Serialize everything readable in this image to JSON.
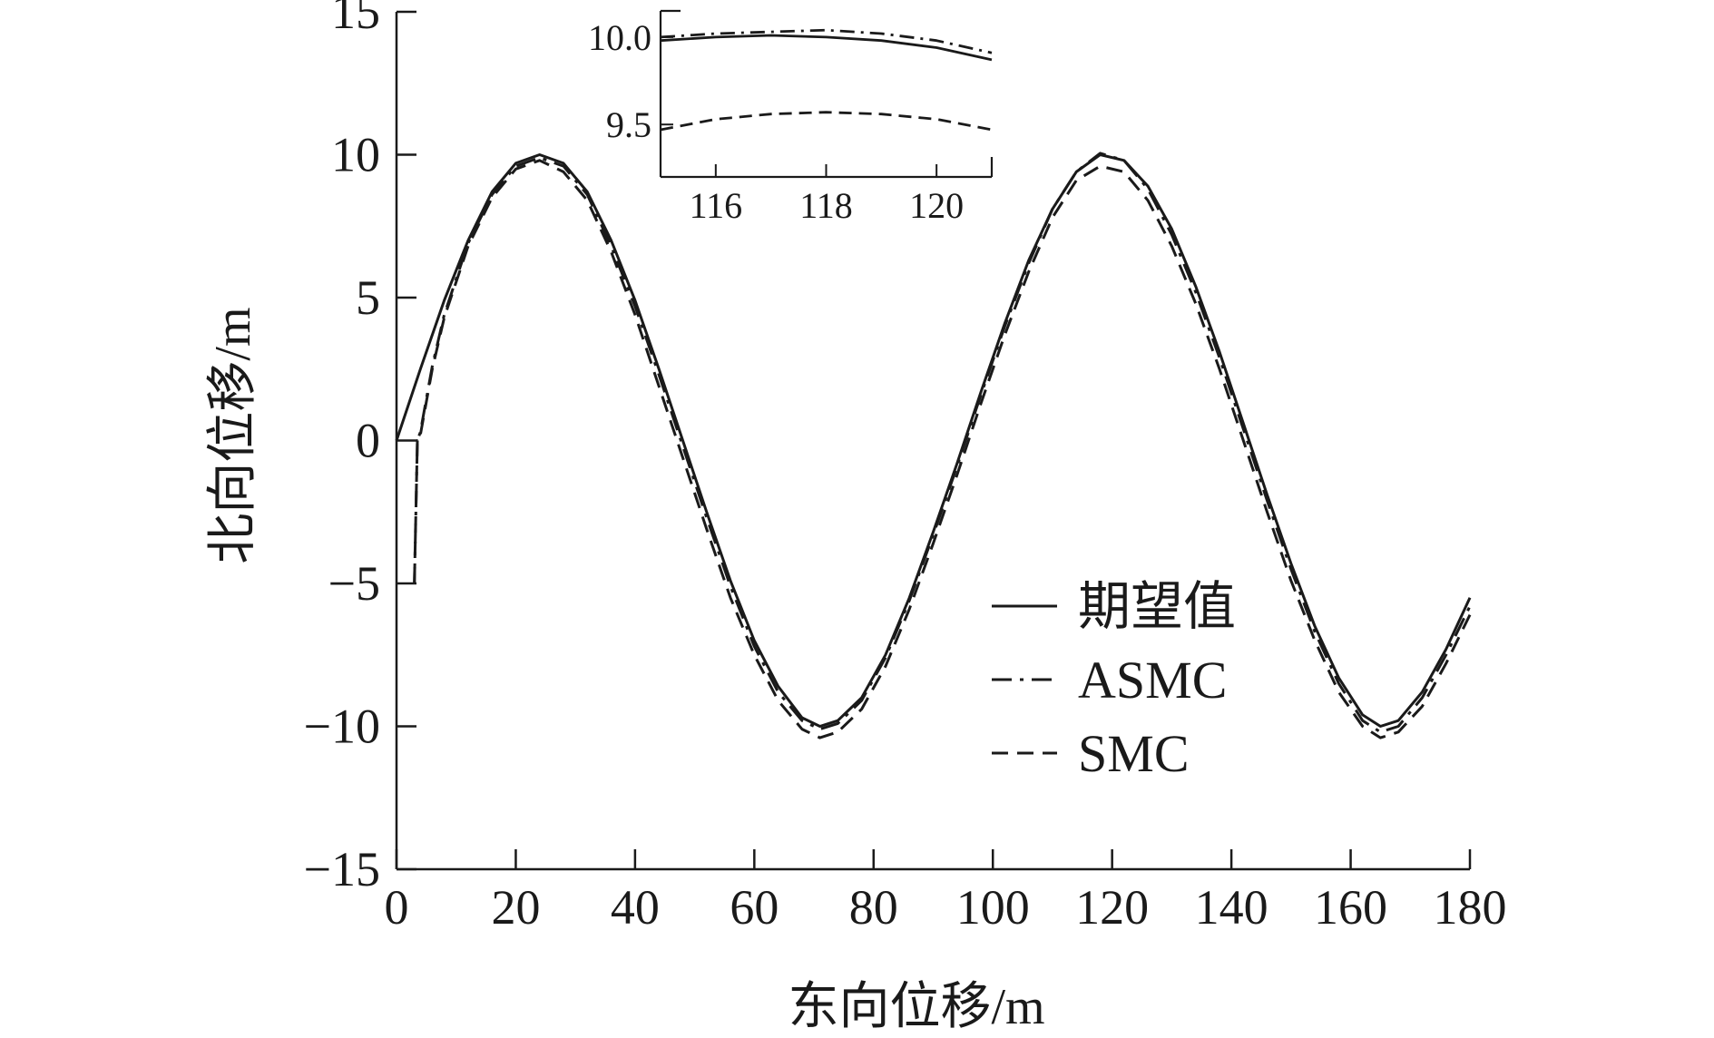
{
  "chart_data": {
    "type": "line",
    "title": "",
    "xlabel": "东向位移/m",
    "ylabel": "北向位移/m",
    "xlim": [
      0,
      180
    ],
    "ylim": [
      -15,
      15
    ],
    "xticks": [
      0,
      20,
      40,
      60,
      80,
      100,
      120,
      140,
      160,
      180
    ],
    "yticks": [
      15,
      10,
      5,
      0,
      -5,
      -10,
      -15
    ],
    "ytick_labels": [
      "15",
      "10",
      "5",
      "0",
      "−5",
      "−10",
      "−15"
    ],
    "grid": false,
    "legend_position": "lower-right",
    "series": [
      {
        "name": "期望值",
        "style": "solid",
        "x": [
          0,
          4,
          8,
          12,
          16,
          20,
          24,
          28,
          32,
          36,
          40,
          44,
          48,
          52,
          56,
          60,
          64,
          68,
          71,
          74,
          78,
          82,
          86,
          90,
          94,
          98,
          102,
          106,
          110,
          114,
          118,
          122,
          126,
          130,
          134,
          138,
          142,
          146,
          150,
          154,
          158,
          162,
          165,
          168,
          172,
          176,
          180
        ],
        "y": [
          0,
          2.5,
          4.9,
          7.0,
          8.7,
          9.7,
          10.0,
          9.7,
          8.7,
          7.0,
          4.9,
          2.5,
          0.0,
          -2.5,
          -4.9,
          -7.0,
          -8.6,
          -9.7,
          -10.0,
          -9.8,
          -9.0,
          -7.5,
          -5.5,
          -3.2,
          -0.8,
          1.7,
          4.1,
          6.3,
          8.1,
          9.4,
          10.0,
          9.8,
          8.9,
          7.4,
          5.4,
          3.1,
          0.6,
          -1.9,
          -4.3,
          -6.5,
          -8.3,
          -9.6,
          -10.0,
          -9.8,
          -8.8,
          -7.3,
          -5.5
        ]
      },
      {
        "name": "ASMC",
        "style": "dashdot",
        "x": [
          3,
          3,
          3.5,
          4,
          6,
          8,
          12,
          16,
          20,
          24,
          28,
          32,
          36,
          40,
          44,
          48,
          52,
          56,
          60,
          64,
          68,
          71,
          74,
          78,
          82,
          86,
          90,
          94,
          98,
          102,
          106,
          110,
          114,
          118,
          122,
          126,
          130,
          134,
          138,
          142,
          146,
          150,
          154,
          158,
          162,
          165,
          168,
          172,
          176,
          180
        ],
        "y": [
          -5.0,
          -5.0,
          0.0,
          0.3,
          2.6,
          4.4,
          6.9,
          8.6,
          9.6,
          9.9,
          9.6,
          8.6,
          6.8,
          4.7,
          2.3,
          -0.2,
          -2.7,
          -5.1,
          -7.2,
          -8.8,
          -9.8,
          -10.1,
          -9.9,
          -9.1,
          -7.6,
          -5.6,
          -3.3,
          -0.9,
          1.6,
          4.0,
          6.2,
          8.1,
          9.4,
          10.05,
          9.8,
          8.8,
          7.2,
          5.2,
          2.9,
          0.4,
          -2.1,
          -4.5,
          -6.7,
          -8.5,
          -9.8,
          -10.2,
          -10.0,
          -9.0,
          -7.5,
          -5.8
        ]
      },
      {
        "name": "SMC",
        "style": "dashed",
        "x": [
          3,
          3.5,
          4,
          4,
          6,
          8,
          12,
          16,
          20,
          24,
          28,
          32,
          36,
          40,
          44,
          48,
          52,
          56,
          60,
          64,
          68,
          71,
          74,
          78,
          82,
          86,
          90,
          94,
          98,
          102,
          106,
          110,
          114,
          118,
          122,
          126,
          130,
          134,
          138,
          142,
          146,
          150,
          154,
          158,
          162,
          165,
          168,
          172,
          176,
          180
        ],
        "y": [
          -5.0,
          0.0,
          0.0,
          0.2,
          2.5,
          4.3,
          6.8,
          8.5,
          9.5,
          9.8,
          9.4,
          8.4,
          6.6,
          4.4,
          1.9,
          -0.6,
          -3.1,
          -5.5,
          -7.5,
          -9.1,
          -10.1,
          -10.4,
          -10.2,
          -9.4,
          -7.9,
          -5.9,
          -3.6,
          -1.2,
          1.3,
          3.7,
          5.9,
          7.8,
          9.1,
          9.6,
          9.4,
          8.4,
          6.8,
          4.8,
          2.5,
          0.0,
          -2.5,
          -4.9,
          -7.0,
          -8.8,
          -10.0,
          -10.4,
          -10.2,
          -9.3,
          -7.8,
          -6.1
        ]
      }
    ],
    "inset": {
      "xlim": [
        115,
        121
      ],
      "ylim": [
        9.2,
        10.15
      ],
      "xticks": [
        116,
        118,
        120
      ],
      "yticks": [
        10.0,
        9.5
      ],
      "ytick_labels": [
        "10.0",
        "9.5"
      ],
      "series": [
        {
          "name": "期望值",
          "style": "solid",
          "x": [
            115,
            116,
            117,
            118,
            119,
            120,
            121
          ],
          "y": [
            9.98,
            10.0,
            10.01,
            10.0,
            9.98,
            9.94,
            9.87
          ]
        },
        {
          "name": "ASMC",
          "style": "dashdot",
          "x": [
            115,
            116,
            117,
            118,
            119,
            120,
            121
          ],
          "y": [
            10.0,
            10.02,
            10.03,
            10.04,
            10.02,
            9.98,
            9.91
          ]
        },
        {
          "name": "SMC",
          "style": "dashed",
          "x": [
            115,
            116,
            117,
            118,
            119,
            120,
            121
          ],
          "y": [
            9.47,
            9.53,
            9.56,
            9.57,
            9.56,
            9.53,
            9.47
          ]
        }
      ]
    }
  },
  "legend": {
    "items": [
      {
        "label": "期望值",
        "style": "solid"
      },
      {
        "label": "ASMC",
        "style": "dashdot"
      },
      {
        "label": "SMC",
        "style": "dashed"
      }
    ]
  }
}
